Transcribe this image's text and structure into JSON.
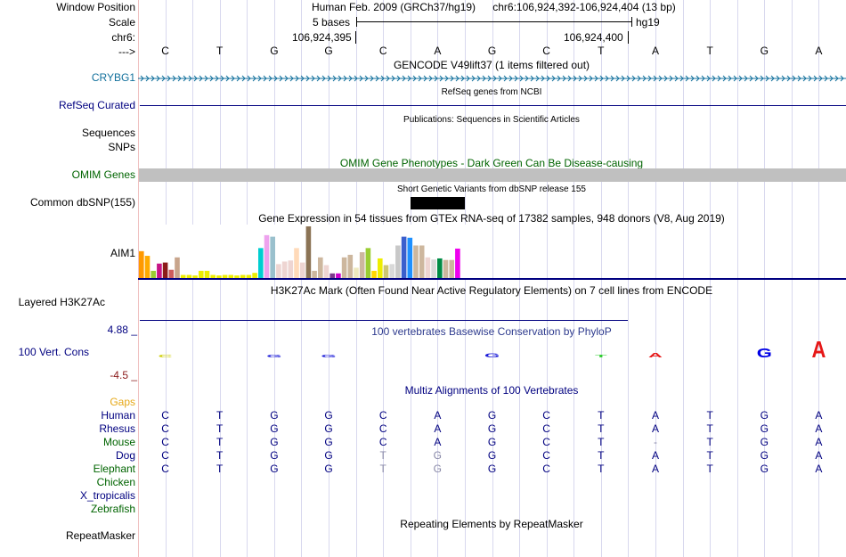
{
  "header": {
    "window_position_label": "Window Position",
    "scale_label": "Scale",
    "chrom_label": "chr6:",
    "arrow_label": "--->",
    "assembly": "Human Feb. 2009 (GRCh37/hg19)",
    "position": "chr6:106,924,392-106,924,404 (13 bp)",
    "scale_text": "5 bases",
    "db": "hg19",
    "coord1": "106,924,395",
    "coord2": "106,924,400"
  },
  "bases": [
    "C",
    "T",
    "G",
    "G",
    "C",
    "A",
    "G",
    "C",
    "T",
    "A",
    "T",
    "G",
    "A"
  ],
  "tracks": {
    "gencode": {
      "title": "GENCODE V49lift37 (1 items filtered out)",
      "gene": "CRYBG1"
    },
    "refseq": {
      "title": "RefSeq genes from NCBI",
      "label": "RefSeq Curated"
    },
    "publications": {
      "title": "Publications: Sequences in Scientific Articles",
      "label1": "Sequences",
      "label2": "SNPs"
    },
    "omim": {
      "title": "OMIM Gene Phenotypes - Dark Green Can Be Disease-causing",
      "label": "OMIM Genes"
    },
    "dbsnp": {
      "title": "Short Genetic Variants from dbSNP release 155",
      "label": "Common dbSNP(155)"
    },
    "gtex": {
      "title": "Gene Expression in 54 tissues from GTEx RNA-seq of 17382 samples, 948 donors (V8, Aug 2019)",
      "label": "AIM1"
    },
    "h3k27ac": {
      "title": "H3K27Ac Mark (Often Found Near Active Regulatory Elements) on 7 cell lines from ENCODE",
      "label": "Layered H3K27Ac"
    },
    "phylop": {
      "title": "100 vertebrates Basewise Conservation by PhyloP",
      "label": "100 Vert. Cons",
      "max": "4.88 _",
      "min": "-4.5 _"
    },
    "multiz": {
      "title": "Multiz Alignments of 100 Vertebrates",
      "gaps_label": "Gaps"
    },
    "repeatmasker": {
      "title": "Repeating Elements by RepeatMasker",
      "label": "RepeatMasker"
    }
  },
  "species": [
    {
      "name": "Human",
      "color": "#000080",
      "bases": [
        "C",
        "T",
        "G",
        "G",
        "C",
        "A",
        "G",
        "C",
        "T",
        "A",
        "T",
        "G",
        "A"
      ],
      "faded": []
    },
    {
      "name": "Rhesus",
      "color": "#000080",
      "bases": [
        "C",
        "T",
        "G",
        "G",
        "C",
        "A",
        "G",
        "C",
        "T",
        "A",
        "T",
        "G",
        "A"
      ],
      "faded": []
    },
    {
      "name": "Mouse",
      "color": "#006400",
      "bases": [
        "C",
        "T",
        "G",
        "G",
        "C",
        "A",
        "G",
        "C",
        "T",
        "-",
        "T",
        "G",
        "A"
      ],
      "faded": [
        9
      ]
    },
    {
      "name": "Dog",
      "color": "#000080",
      "bases": [
        "C",
        "T",
        "G",
        "G",
        "T",
        "G",
        "G",
        "C",
        "T",
        "A",
        "T",
        "G",
        "A"
      ],
      "faded": [
        4,
        5
      ]
    },
    {
      "name": "Elephant",
      "color": "#006400",
      "bases": [
        "C",
        "T",
        "G",
        "G",
        "T",
        "G",
        "G",
        "C",
        "T",
        "A",
        "T",
        "G",
        "A"
      ],
      "faded": [
        4,
        5
      ]
    },
    {
      "name": "Chicken",
      "color": "#006400",
      "bases": [],
      "faded": []
    },
    {
      "name": "X_tropicalis",
      "color": "#000080",
      "bases": [],
      "faded": []
    },
    {
      "name": "Zebrafish",
      "color": "#006400",
      "bases": [],
      "faded": []
    }
  ],
  "colors": {
    "navy": "#000080",
    "green": "#006400",
    "gencode": "#12709C",
    "omim_bar": "#c0c0c0",
    "gaps": "#e6a817",
    "phylop_max": "#000080",
    "phylop_min": "#8b1a1a"
  },
  "gtex_bars": [
    {
      "v": 0.52,
      "c": "#FF9900"
    },
    {
      "v": 0.43,
      "c": "#FFAA00"
    },
    {
      "v": 0.14,
      "c": "#9ACD32"
    },
    {
      "v": 0.28,
      "c": "#C71585"
    },
    {
      "v": 0.3,
      "c": "#8B1A1A"
    },
    {
      "v": 0.16,
      "c": "#CD5C5C"
    },
    {
      "v": 0.4,
      "c": "#C8A58C"
    },
    {
      "v": 0.06,
      "c": "#EEEE00"
    },
    {
      "v": 0.06,
      "c": "#EEEE00"
    },
    {
      "v": 0.05,
      "c": "#EEEE00"
    },
    {
      "v": 0.14,
      "c": "#EEEE00"
    },
    {
      "v": 0.14,
      "c": "#EEEE00"
    },
    {
      "v": 0.06,
      "c": "#EEEE00"
    },
    {
      "v": 0.05,
      "c": "#EEEE00"
    },
    {
      "v": 0.06,
      "c": "#EEEE00"
    },
    {
      "v": 0.06,
      "c": "#EEEE00"
    },
    {
      "v": 0.05,
      "c": "#EEEE00"
    },
    {
      "v": 0.06,
      "c": "#EEEE00"
    },
    {
      "v": 0.06,
      "c": "#EEEE00"
    },
    {
      "v": 0.1,
      "c": "#EEEE00"
    },
    {
      "v": 0.58,
      "c": "#00CED1"
    },
    {
      "v": 0.83,
      "c": "#EEA2EE"
    },
    {
      "v": 0.8,
      "c": "#9AC0CD"
    },
    {
      "v": 0.27,
      "c": "#EED5D2"
    },
    {
      "v": 0.32,
      "c": "#EED5D2"
    },
    {
      "v": 0.34,
      "c": "#EED5D2"
    },
    {
      "v": 0.58,
      "c": "#FFDAB9"
    },
    {
      "v": 0.3,
      "c": "#EED5D2"
    },
    {
      "v": 1.0,
      "c": "#8B7355"
    },
    {
      "v": 0.14,
      "c": "#CDB79E"
    },
    {
      "v": 0.4,
      "c": "#CDB79E"
    },
    {
      "v": 0.25,
      "c": "#EED5D2"
    },
    {
      "v": 0.09,
      "c": "#7A378B"
    },
    {
      "v": 0.09,
      "c": "#CD00CD"
    },
    {
      "v": 0.4,
      "c": "#CDB79E"
    },
    {
      "v": 0.45,
      "c": "#CDB79E"
    },
    {
      "v": 0.2,
      "c": "#EEE9BF"
    },
    {
      "v": 0.5,
      "c": "#CDB79E"
    },
    {
      "v": 0.58,
      "c": "#9ACD32"
    },
    {
      "v": 0.14,
      "c": "#FFD700"
    },
    {
      "v": 0.38,
      "c": "#EEEE00"
    },
    {
      "v": 0.25,
      "c": "#CDC673"
    },
    {
      "v": 0.27,
      "c": "#D9D9D9"
    },
    {
      "v": 0.63,
      "c": "#C8C8C8"
    },
    {
      "v": 0.8,
      "c": "#3A5FCD"
    },
    {
      "v": 0.78,
      "c": "#1E90FF"
    },
    {
      "v": 0.63,
      "c": "#CDB79E"
    },
    {
      "v": 0.63,
      "c": "#CDB79E"
    },
    {
      "v": 0.4,
      "c": "#EED5D2"
    },
    {
      "v": 0.36,
      "c": "#D9D9D9"
    },
    {
      "v": 0.38,
      "c": "#008B45"
    },
    {
      "v": 0.35,
      "c": "#CDB79E"
    },
    {
      "v": 0.35,
      "c": "#CDB79E"
    },
    {
      "v": 0.57,
      "c": "#EE00EE"
    }
  ],
  "phylop_logo": [
    {
      "letter": "C",
      "h": 0.12,
      "c": "#CDCD00"
    },
    {
      "letter": "",
      "h": 0,
      "c": "#000"
    },
    {
      "letter": "G",
      "h": 0.1,
      "c": "#1C1CD8"
    },
    {
      "letter": "G",
      "h": 0.1,
      "c": "#1C1CD8"
    },
    {
      "letter": "",
      "h": 0,
      "c": "#000"
    },
    {
      "letter": "",
      "h": 0,
      "c": "#000"
    },
    {
      "letter": "G",
      "h": 0.2,
      "c": "#1C1CD8"
    },
    {
      "letter": "",
      "h": 0,
      "c": "#000"
    },
    {
      "letter": "T",
      "h": 0.1,
      "c": "#32CD32"
    },
    {
      "letter": "A",
      "h": 0.25,
      "c": "#E61717"
    },
    {
      "letter": "",
      "h": 0,
      "c": "#000"
    },
    {
      "letter": "G",
      "h": 0.5,
      "c": "#0000E6"
    },
    {
      "letter": "A",
      "h": 0.85,
      "c": "#E61717"
    }
  ]
}
